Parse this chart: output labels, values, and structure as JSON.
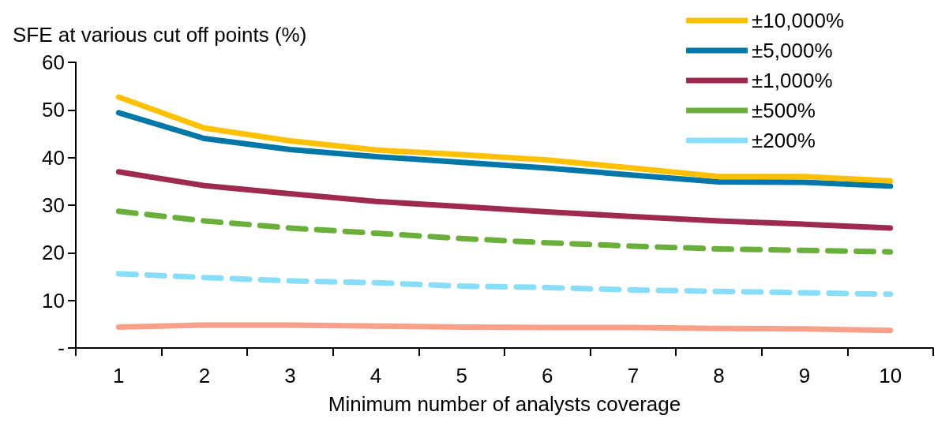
{
  "chart_data": {
    "type": "line",
    "ylabel": "SFE at various cut off points (%)",
    "xlabel": "Minimum number of analysts coverage",
    "categories": [
      "1",
      "2",
      "3",
      "4",
      "5",
      "6",
      "7",
      "8",
      "9",
      "10"
    ],
    "series": [
      {
        "name": "±10,000%",
        "color": "#ffc000",
        "line_style": "solid",
        "values": [
          52.7,
          46.2,
          43.5,
          41.6,
          40.6,
          39.5,
          37.8,
          36.0,
          36.0,
          35.1
        ]
      },
      {
        "name": "±5,000%",
        "color": "#0077a6",
        "line_style": "solid",
        "values": [
          49.4,
          44.0,
          41.7,
          40.2,
          39.0,
          37.8,
          36.3,
          34.9,
          34.8,
          34.0
        ]
      },
      {
        "name": "±1,000%",
        "color": "#9e2b4e",
        "line_style": "solid",
        "values": [
          37.0,
          34.1,
          32.4,
          30.8,
          29.7,
          28.6,
          27.6,
          26.7,
          26.0,
          25.2
        ]
      },
      {
        "name": "±500%",
        "color": "#6aaf3c",
        "line_style": "dashed",
        "values": [
          28.7,
          26.7,
          25.2,
          24.1,
          23.0,
          22.1,
          21.4,
          20.8,
          20.5,
          20.2
        ]
      },
      {
        "name": "±200%",
        "color": "#88ddfb",
        "line_style": "dashed",
        "values": [
          15.6,
          14.8,
          14.1,
          13.7,
          13.0,
          12.7,
          12.2,
          11.9,
          11.6,
          11.3
        ]
      },
      {
        "color": "#f8a08a",
        "line_style": "solid",
        "values": [
          4.4,
          4.8,
          4.8,
          4.6,
          4.4,
          4.3,
          4.3,
          4.1,
          4.0,
          3.7
        ]
      }
    ],
    "ylim": [
      0,
      60
    ],
    "yticks": [
      {
        "value": 0,
        "label": "-"
      },
      10,
      20,
      30,
      40,
      50,
      60
    ],
    "grid": false,
    "legend": "top right",
    "marker": "none"
  }
}
